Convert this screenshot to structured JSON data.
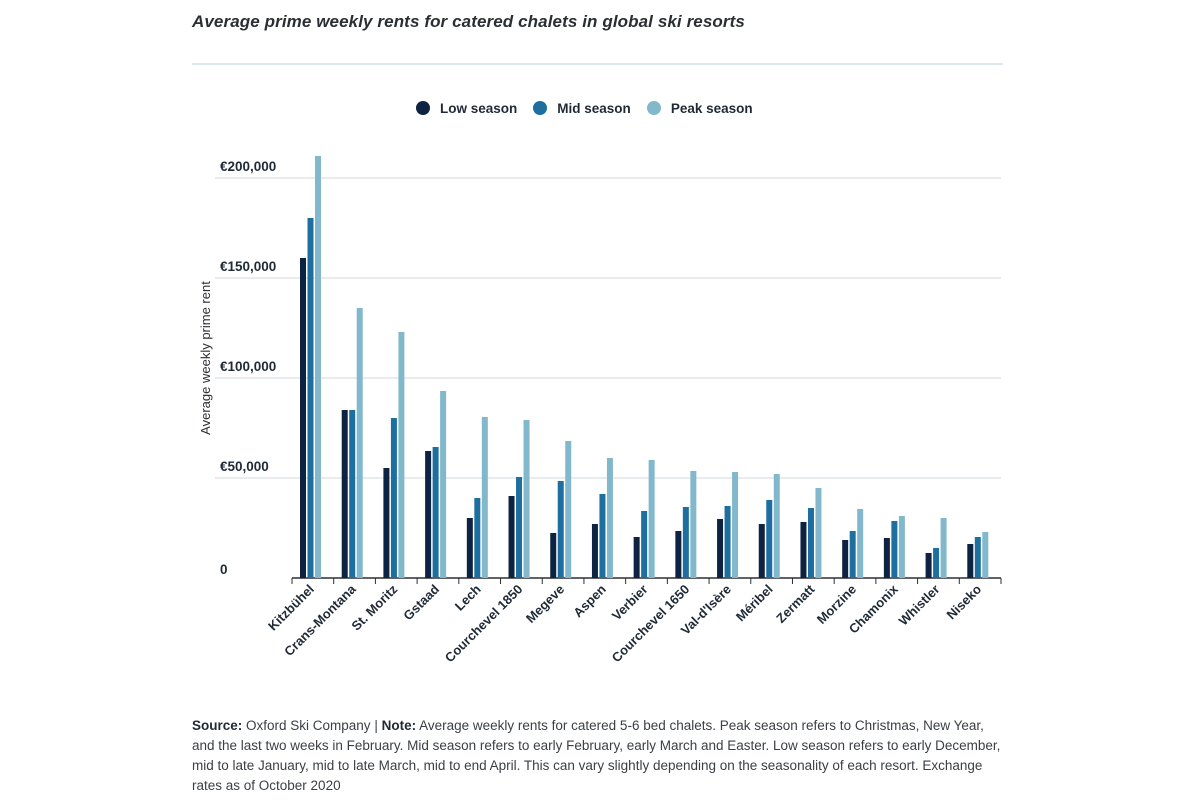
{
  "title": "Average prime weekly rents for catered chalets in global ski resorts",
  "footnote": {
    "source_label": "Source:",
    "source_text": " Oxford Ski Company | ",
    "note_label": "Note:",
    "note_text": " Average weekly rents for catered 5-6 bed chalets. Peak season refers to Christmas, New Year, and the last two weeks in February. Mid season refers to early February, early March and Easter. Low season refers to early December, mid to late January, mid to late March, mid to end April. This can vary slightly depending on the seasonality of each resort. Exchange rates as of October 2020"
  },
  "colors": {
    "low": "#0e2341",
    "mid": "#1d6fa0",
    "peak": "#82b8cc",
    "grid": "#d3d8dc",
    "axis": "#2b2f33"
  },
  "chart_data": {
    "type": "bar",
    "title": "Average prime weekly rents for catered chalets in global ski resorts",
    "xlabel": "",
    "ylabel": "Average weekly prime rent",
    "ylim": [
      0,
      210000
    ],
    "yticks": [
      0,
      50000,
      100000,
      150000,
      200000
    ],
    "ytick_labels": [
      "0",
      "€50,000",
      "€100,000",
      "€150,000",
      "€200,000"
    ],
    "grid": true,
    "legend_position": "top-center",
    "categories": [
      "Kitzbühel",
      "Crans-Montana",
      "St. Moritz",
      "Gstaad",
      "Lech",
      "Courchevel 1850",
      "Megeve",
      "Aspen",
      "Verbier",
      "Courchevel 1650",
      "Val-d'Isère",
      "Méribel",
      "Zermatt",
      "Morzine",
      "Chamonix",
      "Whistler",
      "Niseko"
    ],
    "series": [
      {
        "name": "Low season",
        "color_key": "low",
        "values": [
          160000,
          84000,
          55000,
          63500,
          30000,
          41000,
          22500,
          27000,
          20500,
          23500,
          29500,
          27000,
          28000,
          19000,
          20000,
          12500,
          17000
        ]
      },
      {
        "name": "Mid season",
        "color_key": "mid",
        "values": [
          180000,
          84000,
          80000,
          65500,
          40000,
          50500,
          48500,
          42000,
          33500,
          35500,
          36000,
          39000,
          35000,
          23500,
          28500,
          15000,
          20500
        ]
      },
      {
        "name": "Peak season",
        "color_key": "peak",
        "values": [
          211000,
          135000,
          123000,
          93500,
          80500,
          79000,
          68500,
          60000,
          59000,
          53500,
          53000,
          52000,
          45000,
          34500,
          31000,
          30000,
          23000
        ]
      }
    ]
  }
}
